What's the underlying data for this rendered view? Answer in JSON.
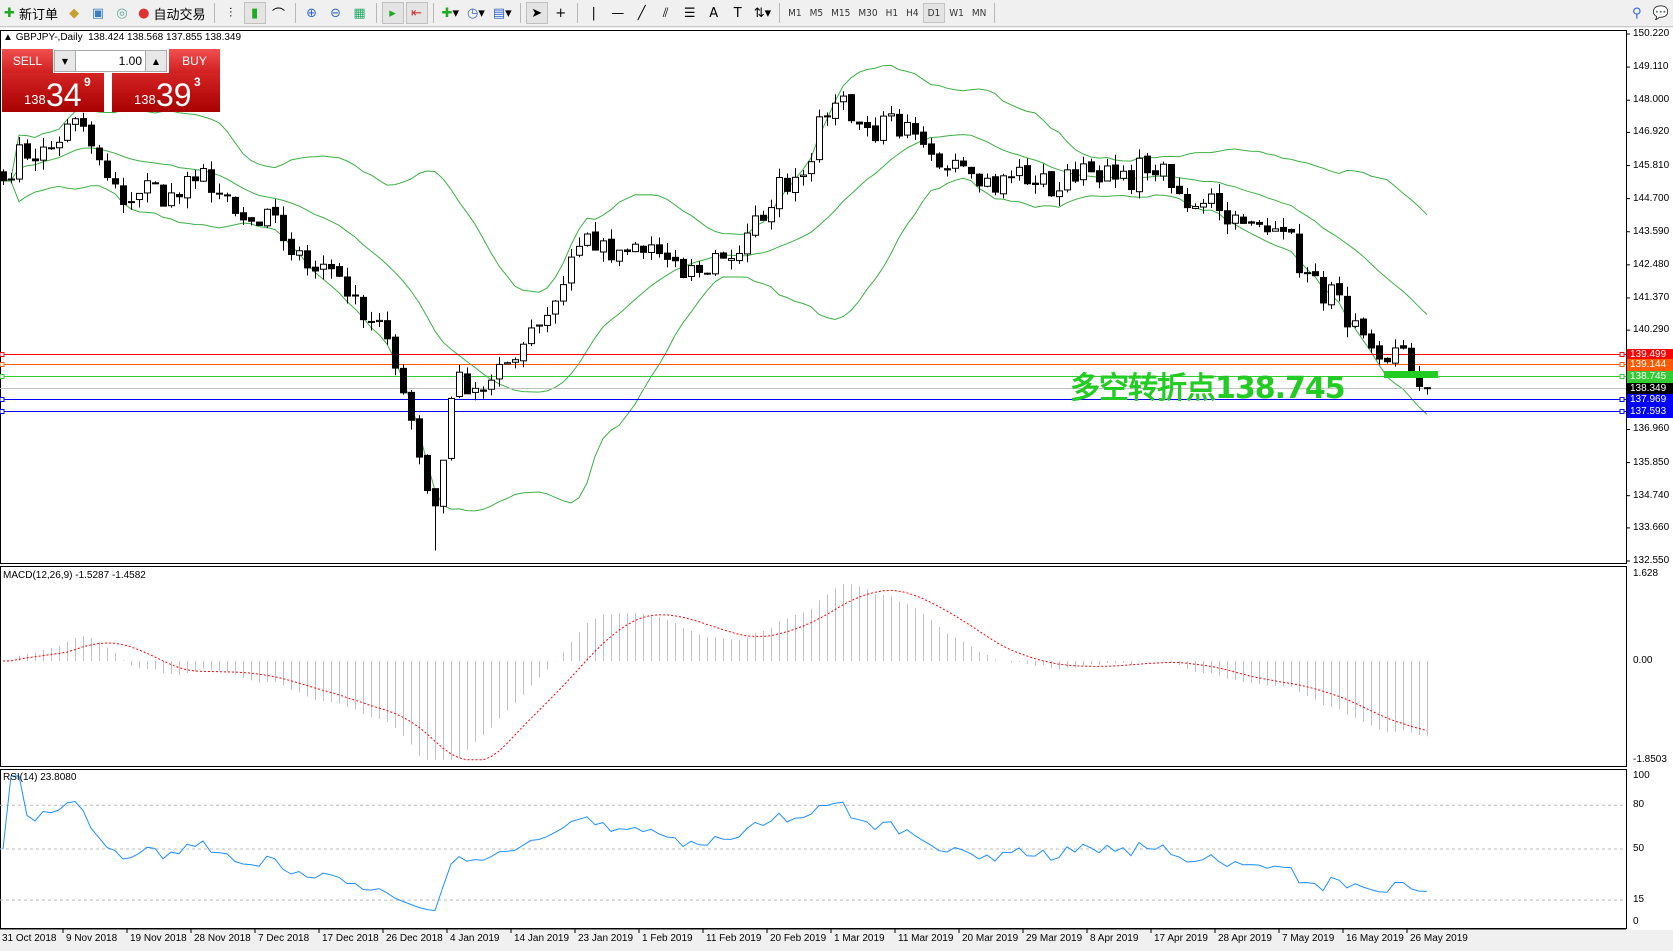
{
  "toolbar": {
    "new_order": "新订单",
    "auto_trading": "自动交易",
    "timeframes": [
      "M1",
      "M5",
      "M15",
      "M30",
      "H1",
      "H4",
      "D1",
      "W1",
      "MN"
    ],
    "active_timeframe": "D1"
  },
  "chart": {
    "header": "GBPJPY-,Daily",
    "ohlc": "138.424 138.568 137.855 138.349"
  },
  "trade_panel": {
    "sell": "SELL",
    "buy": "BUY",
    "lot": "1.00",
    "bid": {
      "big": "138",
      "main": "34",
      "sup": "9"
    },
    "ask": {
      "big": "138",
      "main": "39",
      "sup": "3"
    }
  },
  "price_axis": [
    "150.220",
    "149.110",
    "148.000",
    "146.920",
    "145.810",
    "144.700",
    "143.590",
    "142.480",
    "141.370",
    "140.290",
    "136.960",
    "135.850",
    "134.740",
    "133.660",
    "132.550"
  ],
  "levels": [
    {
      "price": "139.499",
      "color": "#ff0000"
    },
    {
      "price": "139.144",
      "color": "#ff5a00"
    },
    {
      "price": "138.745",
      "color": "#33cc33"
    },
    {
      "price": "138.349",
      "color": "#000000"
    },
    {
      "price": "137.969",
      "color": "#0000ff"
    },
    {
      "price": "137.593",
      "color": "#0000ff"
    }
  ],
  "annotation": {
    "text": "多空转折点138.745",
    "color": "#22cc22"
  },
  "macd": {
    "label": "MACD(12,26,9) -1.5287 -1.4582",
    "axis": [
      "1.628",
      "0.00",
      "-1.8503"
    ]
  },
  "rsi": {
    "label": "RSI(14) 23.8080",
    "axis": [
      "100",
      "80",
      "50",
      "15",
      "0"
    ]
  },
  "date_axis": [
    "31 Oct 2018",
    "9 Nov 2018",
    "19 Nov 2018",
    "28 Nov 2018",
    "7 Dec 2018",
    "17 Dec 2018",
    "26 Dec 2018",
    "4 Jan 2019",
    "14 Jan 2019",
    "23 Jan 2019",
    "1 Feb 2019",
    "11 Feb 2019",
    "20 Feb 2019",
    "1 Mar 2019",
    "11 Mar 2019",
    "20 Mar 2019",
    "29 Mar 2019",
    "8 Apr 2019",
    "17 Apr 2019",
    "28 Apr 2019",
    "7 May 2019",
    "16 May 2019",
    "26 May 2019"
  ],
  "chart_data": {
    "type": "candlestick",
    "symbol": "GBPJPY",
    "timeframe": "Daily",
    "price_range": [
      132.55,
      150.22
    ],
    "approx_closes": [
      {
        "date": "31 Oct 2018",
        "close": 145.3
      },
      {
        "date": "9 Nov 2018",
        "close": 147.2
      },
      {
        "date": "19 Nov 2018",
        "close": 144.6
      },
      {
        "date": "28 Nov 2018",
        "close": 145.3
      },
      {
        "date": "7 Dec 2018",
        "close": 143.8
      },
      {
        "date": "17 Dec 2018",
        "close": 142.5
      },
      {
        "date": "26 Dec 2018",
        "close": 140.0
      },
      {
        "date": "2 Jan 2019",
        "close": 134.4,
        "low": 132.9
      },
      {
        "date": "4 Jan 2019",
        "close": 138.0
      },
      {
        "date": "14 Jan 2019",
        "close": 139.3
      },
      {
        "date": "23 Jan 2019",
        "close": 143.1
      },
      {
        "date": "1 Feb 2019",
        "close": 142.9
      },
      {
        "date": "11 Feb 2019",
        "close": 142.2
      },
      {
        "date": "20 Feb 2019",
        "close": 144.4
      },
      {
        "date": "1 Mar 2019",
        "close": 147.9
      },
      {
        "date": "11 Mar 2019",
        "close": 146.8
      },
      {
        "date": "20 Mar 2019",
        "close": 145.8
      },
      {
        "date": "29 Mar 2019",
        "close": 145.2
      },
      {
        "date": "8 Apr 2019",
        "close": 145.6
      },
      {
        "date": "17 Apr 2019",
        "close": 145.5
      },
      {
        "date": "28 Apr 2019",
        "close": 144.3
      },
      {
        "date": "7 May 2019",
        "close": 143.6
      },
      {
        "date": "16 May 2019",
        "close": 140.4
      },
      {
        "date": "26 May 2019",
        "close": 138.8
      },
      {
        "date": "28 May 2019",
        "close": 138.349
      }
    ],
    "indicators": [
      "Bollinger Bands(20,2)",
      "MACD(12,26,9)",
      "RSI(14)"
    ],
    "rsi_levels": [
      80,
      50,
      15
    ],
    "colors": {
      "bands": "#3cb043",
      "macd_hist": "#c0c0c0",
      "macd_signal": "#ff0000",
      "rsi": "#1e90ff"
    }
  }
}
